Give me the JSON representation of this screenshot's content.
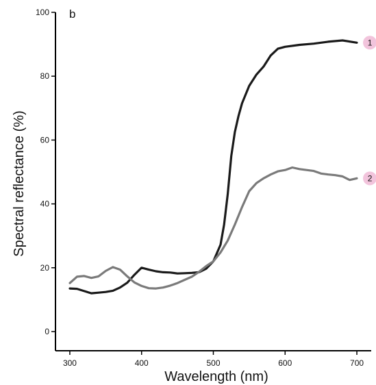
{
  "chart_data": {
    "type": "line",
    "panel_label": "b",
    "xlabel": "Wavelength (nm)",
    "ylabel": "Spectral reflectance (%)",
    "xlim": [
      280,
      720
    ],
    "ylim": [
      -6,
      100
    ],
    "xticks": [
      300,
      400,
      500,
      600,
      700
    ],
    "yticks": [
      0,
      20,
      40,
      60,
      80,
      100
    ],
    "grid": false,
    "legend": "none",
    "series": [
      {
        "name": "1",
        "color": "#1a1a1a",
        "badge_color": "#f2c4dc",
        "x": [
          300,
          310,
          320,
          330,
          340,
          350,
          360,
          370,
          380,
          390,
          400,
          410,
          420,
          430,
          440,
          450,
          460,
          470,
          480,
          490,
          500,
          510,
          515,
          520,
          525,
          530,
          535,
          540,
          550,
          560,
          570,
          580,
          590,
          600,
          620,
          640,
          660,
          680,
          700
        ],
        "y": [
          13.5,
          13.4,
          12.7,
          12.0,
          12.2,
          12.4,
          12.8,
          13.8,
          15.3,
          17.8,
          20.0,
          19.4,
          18.9,
          18.6,
          18.5,
          18.2,
          18.3,
          18.4,
          18.6,
          19.7,
          22.0,
          27.2,
          33.5,
          43.0,
          55.0,
          62.5,
          67.5,
          71.5,
          77.0,
          80.5,
          83.0,
          86.5,
          88.6,
          89.2,
          89.8,
          90.2,
          90.8,
          91.2,
          90.5
        ]
      },
      {
        "name": "2",
        "color": "#7a7a7a",
        "badge_color": "#f2c4dc",
        "x": [
          300,
          310,
          320,
          330,
          340,
          350,
          360,
          370,
          380,
          390,
          400,
          410,
          420,
          430,
          440,
          450,
          460,
          470,
          480,
          490,
          500,
          510,
          520,
          530,
          540,
          550,
          560,
          570,
          580,
          590,
          600,
          610,
          620,
          630,
          640,
          650,
          660,
          670,
          680,
          690,
          700
        ],
        "y": [
          15.2,
          17.2,
          17.4,
          16.8,
          17.3,
          19.0,
          20.2,
          19.4,
          17.3,
          15.4,
          14.3,
          13.6,
          13.5,
          13.8,
          14.4,
          15.2,
          16.2,
          17.2,
          18.7,
          20.5,
          22.0,
          24.8,
          28.5,
          33.5,
          39.0,
          44.0,
          46.5,
          48.0,
          49.2,
          50.2,
          50.6,
          51.4,
          50.9,
          50.6,
          50.3,
          49.5,
          49.2,
          49.0,
          48.6,
          47.5,
          48.0
        ]
      }
    ]
  }
}
